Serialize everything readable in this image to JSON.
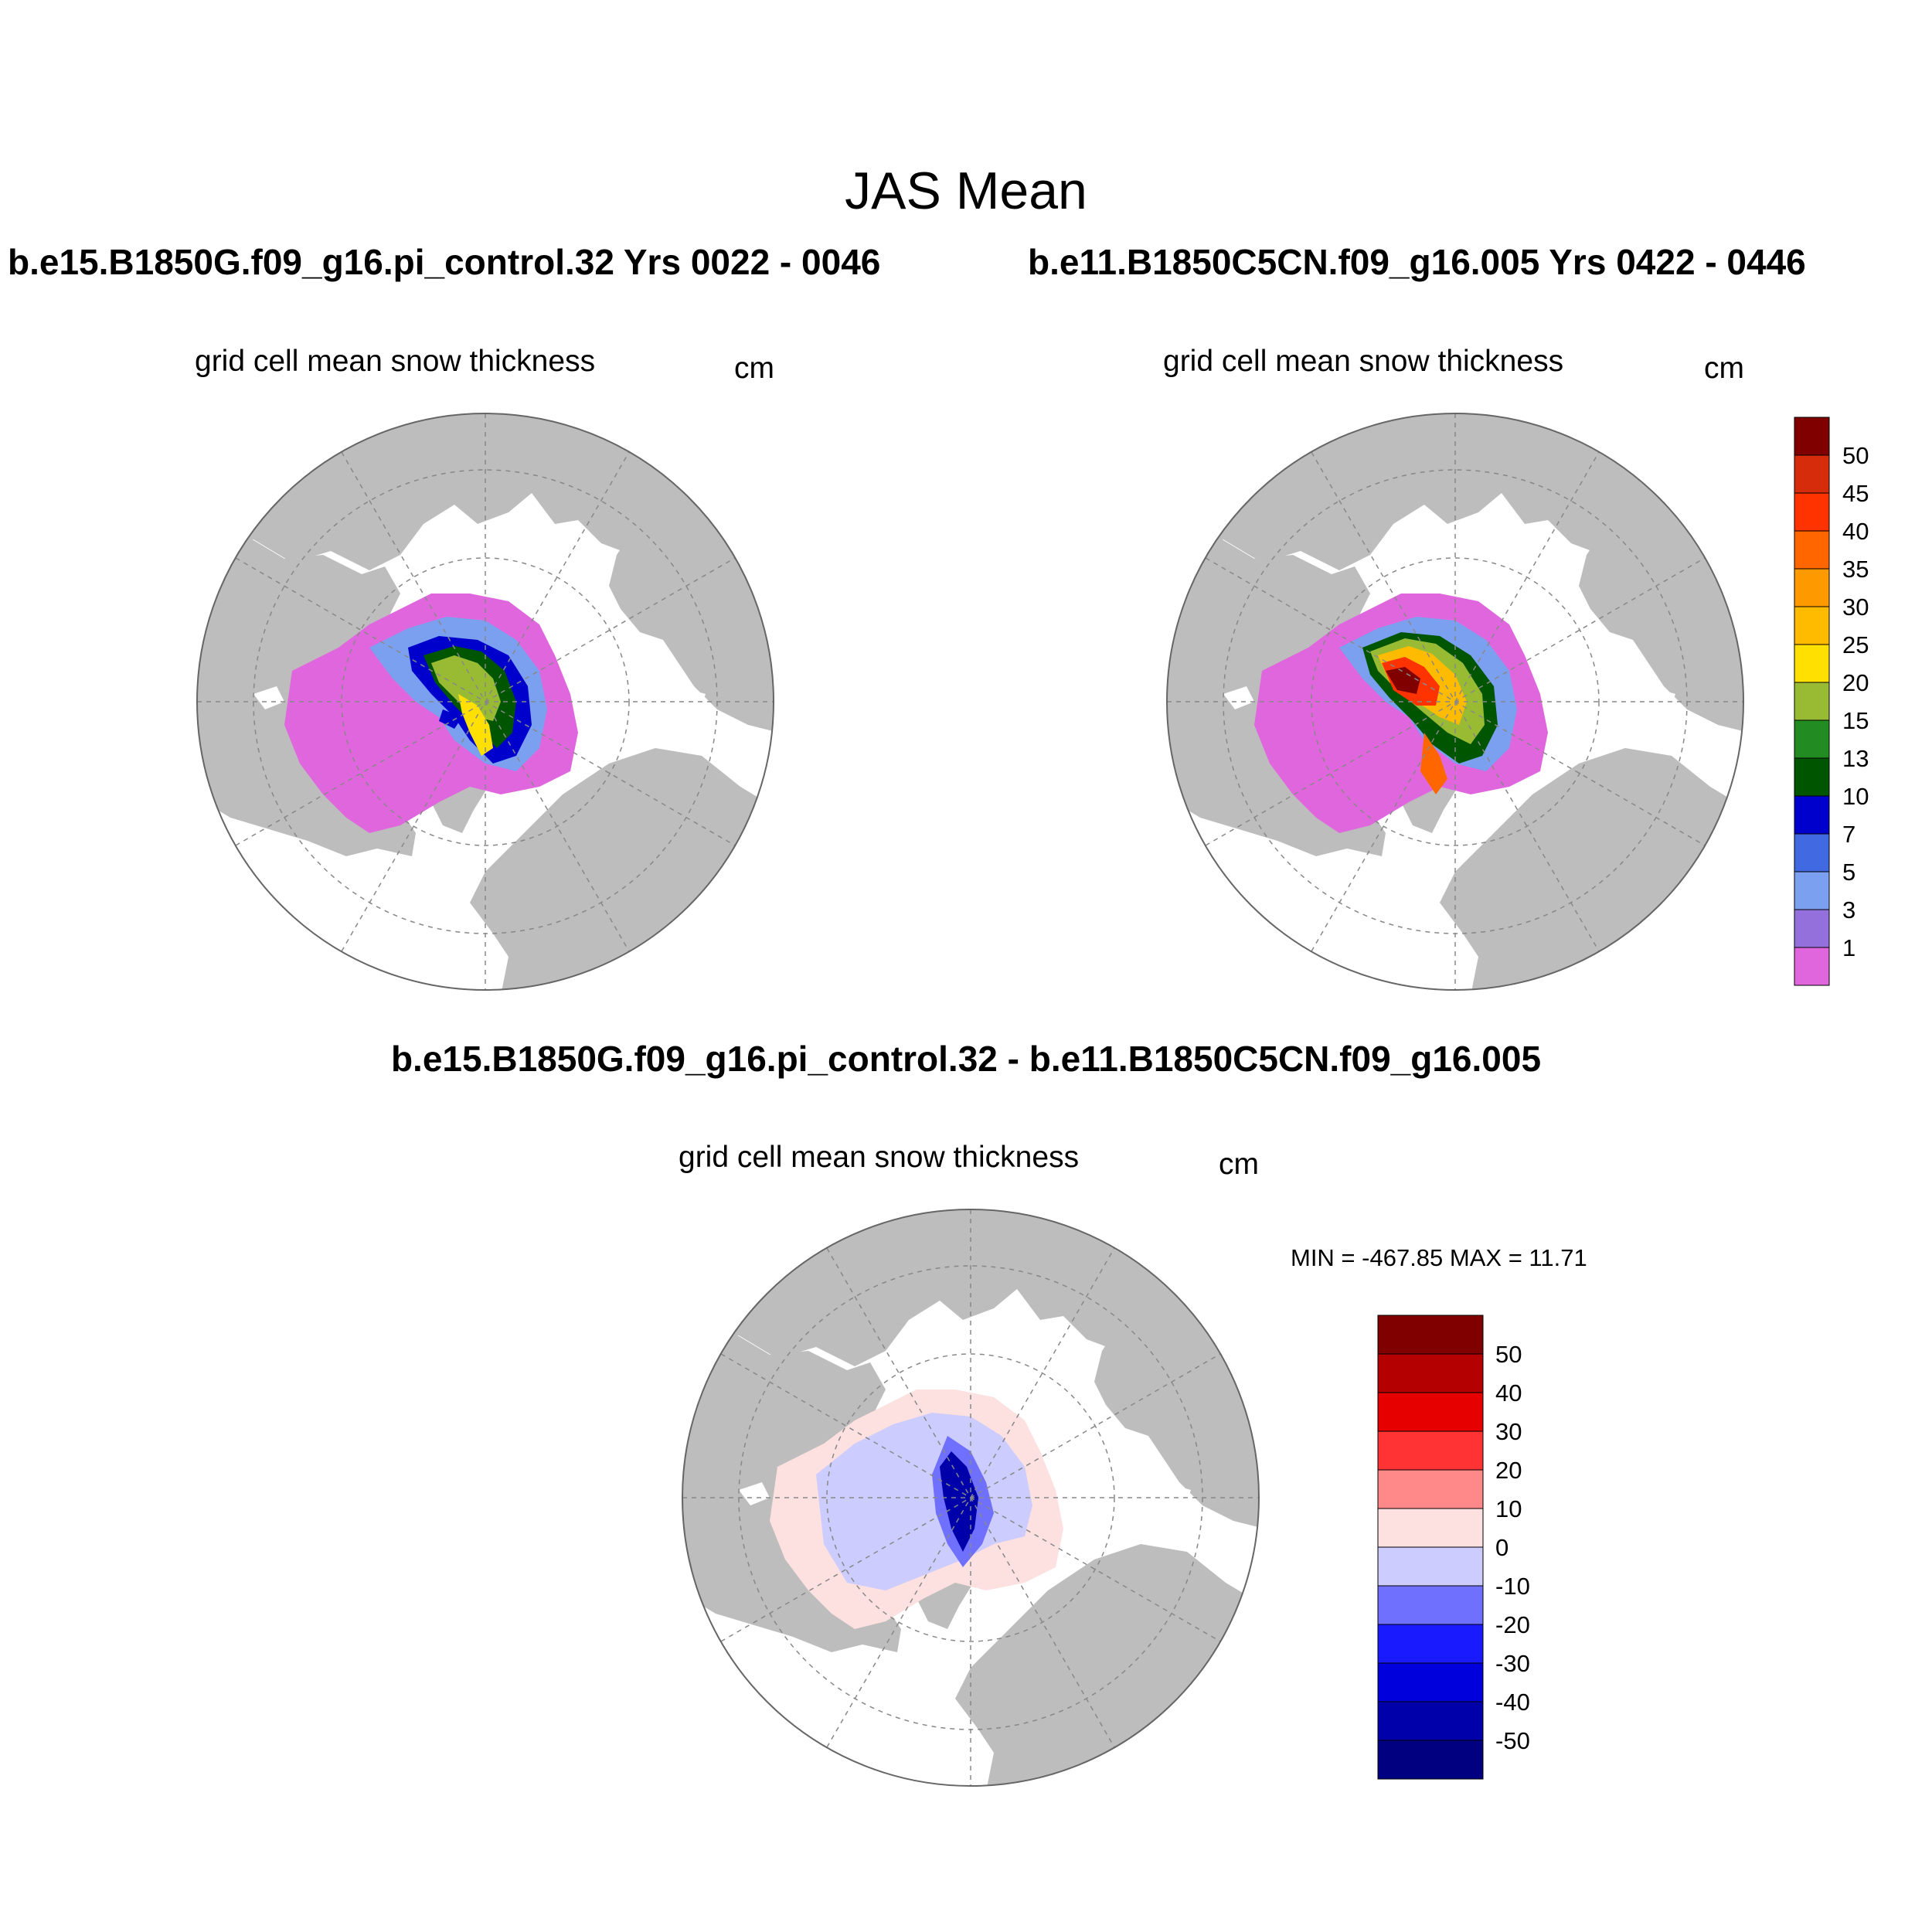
{
  "title": "JAS Mean",
  "panels": [
    {
      "id": "case-a",
      "title": "b.e15.B1850G.f09_g16.pi_control.32  Yrs 0022 - 0046",
      "variable": "grid cell mean snow thickness",
      "units": "cm"
    },
    {
      "id": "case-b",
      "title": "b.e11.B1850C5CN.f09_g16.005  Yrs 0422 - 0446",
      "variable": "grid cell mean snow thickness",
      "units": "cm"
    },
    {
      "id": "difference",
      "title": "b.e15.B1850G.f09_g16.pi_control.32 - b.e11.B1850C5CN.f09_g16.005",
      "variable": "grid cell mean snow thickness",
      "units": "cm",
      "min_max": "MIN = -467.85 MAX =  11.71"
    }
  ],
  "colorbar_main": {
    "labels": [
      "50",
      "45",
      "40",
      "35",
      "30",
      "25",
      "20",
      "15",
      "13",
      "10",
      "7",
      "5",
      "3",
      "1"
    ],
    "colors": [
      "#800000",
      "#d62c0c",
      "#ff3300",
      "#ff6600",
      "#ff9900",
      "#ffbb00",
      "#ffe000",
      "#99bb33",
      "#228b22",
      "#005500",
      "#0000cc",
      "#4169e1",
      "#7ba0f0",
      "#9370db",
      "#e066dd"
    ]
  },
  "colorbar_diff": {
    "labels": [
      "50",
      "40",
      "30",
      "20",
      "10",
      "0",
      "-10",
      "-20",
      "-30",
      "-40",
      "-50"
    ],
    "colors": [
      "#800000",
      "#b40000",
      "#e60000",
      "#ff3333",
      "#ff8888",
      "#fde0e0",
      "#ccccff",
      "#7070ff",
      "#1a1aff",
      "#0000dd",
      "#0000aa",
      "#000080"
    ]
  }
}
